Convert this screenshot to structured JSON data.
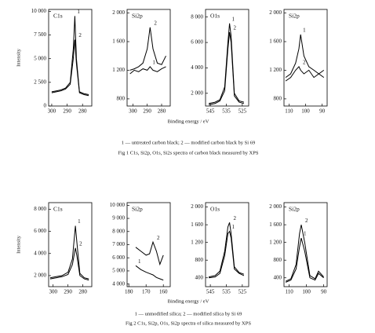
{
  "chart_data": [
    {
      "type": "line",
      "title": "C1s",
      "ylabel": "Intensity",
      "x": [
        300,
        297,
        294,
        291,
        288,
        286,
        285,
        284,
        282,
        279,
        276
      ],
      "xlim": [
        302,
        274
      ],
      "xticks": [
        300,
        290,
        280
      ],
      "ylim": [
        0,
        10200
      ],
      "yticks": [
        {
          "value": 10000,
          "label": "10 000"
        },
        {
          "value": 7500,
          "label": "7 500"
        },
        {
          "value": 5000,
          "label": "5 000"
        },
        {
          "value": 2500,
          "label": "2 500"
        },
        0
      ],
      "series": [
        {
          "name": "1",
          "color": "#000000",
          "values": [
            1500,
            1600,
            1700,
            1900,
            2500,
            6000,
            9500,
            5000,
            1500,
            1300,
            1200
          ]
        },
        {
          "name": "2",
          "color": "#000000",
          "values": [
            1400,
            1500,
            1600,
            1800,
            2300,
            5000,
            7000,
            4500,
            1400,
            1200,
            1100
          ]
        }
      ]
    },
    {
      "type": "line",
      "title": "Si2p",
      "x": [
        302,
        299,
        296,
        293,
        290,
        288,
        286,
        283,
        280,
        277
      ],
      "xlim": [
        304,
        274
      ],
      "xticks": [
        300,
        290,
        280
      ],
      "ylim": [
        700,
        2050
      ],
      "yticks": [
        {
          "value": 2000,
          "label": "2 000"
        },
        {
          "value": 1600,
          "label": "1 600"
        },
        {
          "value": 1200,
          "label": "1 200"
        },
        800
      ],
      "series": [
        {
          "name": "1",
          "color": "#000000",
          "values": [
            1150,
            1200,
            1180,
            1220,
            1200,
            1250,
            1200,
            1180,
            1220,
            1250
          ]
        },
        {
          "name": "2",
          "color": "#000000",
          "values": [
            1200,
            1220,
            1250,
            1300,
            1500,
            1800,
            1500,
            1300,
            1280,
            1400
          ]
        }
      ]
    },
    {
      "type": "line",
      "title": "O1s",
      "x": [
        546,
        542,
        539,
        536,
        534,
        533,
        532,
        530,
        527,
        524
      ],
      "xlim": [
        548,
        521
      ],
      "xticks": [
        545,
        535,
        525
      ],
      "ylim": [
        1000,
        8600
      ],
      "yticks": [
        {
          "value": 8000,
          "label": "8 000"
        },
        {
          "value": 6000,
          "label": "6 000"
        },
        {
          "value": 4000,
          "label": "4 000"
        },
        {
          "value": 2000,
          "label": "2 000"
        }
      ],
      "series": [
        {
          "name": "1",
          "color": "#000000",
          "values": [
            1200,
            1300,
            1500,
            2500,
            6000,
            7500,
            6500,
            2000,
            1400,
            1300
          ]
        },
        {
          "name": "2",
          "color": "#000000",
          "values": [
            1100,
            1200,
            1400,
            2200,
            5500,
            6800,
            6000,
            1800,
            1300,
            1200
          ]
        }
      ]
    },
    {
      "type": "line",
      "title": "Si2p",
      "x": [
        112,
        109,
        106,
        104,
        103,
        101,
        98,
        95,
        92,
        89
      ],
      "xlim": [
        113,
        87
      ],
      "xticks": [
        110,
        100,
        90
      ],
      "ylim": [
        700,
        2050
      ],
      "yticks": [
        {
          "value": 2000,
          "label": "2 000"
        },
        {
          "value": 1600,
          "label": "1 600"
        },
        {
          "value": 1200,
          "label": "1 200"
        },
        800
      ],
      "series": [
        {
          "name": "1",
          "color": "#000000",
          "values": [
            1100,
            1150,
            1300,
            1500,
            1700,
            1400,
            1250,
            1200,
            1150,
            1200
          ]
        },
        {
          "name": "2",
          "color": "#000000",
          "values": [
            1050,
            1100,
            1200,
            1250,
            1200,
            1150,
            1200,
            1100,
            1150,
            1100
          ]
        }
      ]
    },
    {
      "type": "line",
      "title": "C1s",
      "ylabel": "Intensity",
      "x": [
        302,
        298,
        294,
        290,
        287,
        285,
        284,
        282,
        279,
        276
      ],
      "xlim": [
        303,
        274
      ],
      "xticks": [
        300,
        290,
        280
      ],
      "ylim": [
        1000,
        8600
      ],
      "yticks": [
        {
          "value": 8000,
          "label": "8 000"
        },
        {
          "value": 6000,
          "label": "6 000"
        },
        {
          "value": 4000,
          "label": "4 000"
        },
        {
          "value": 2000,
          "label": "2 000"
        }
      ],
      "series": [
        {
          "name": "1",
          "color": "#000000",
          "values": [
            1800,
            1900,
            2000,
            2300,
            3500,
            6500,
            5000,
            2200,
            1800,
            1700
          ]
        },
        {
          "name": "2",
          "color": "#000000",
          "values": [
            1700,
            1800,
            1900,
            2100,
            3000,
            4500,
            3800,
            2000,
            1700,
            1600
          ]
        }
      ]
    },
    {
      "type": "line",
      "title": "Si2p",
      "x": [
        176,
        173,
        170,
        168,
        166,
        164,
        162,
        160
      ],
      "xlim": [
        181,
        156
      ],
      "xticks": [
        180,
        170,
        160
      ],
      "ylim": [
        3800,
        10200
      ],
      "yticks": [
        {
          "value": 10000,
          "label": "10 000"
        },
        {
          "value": 9000,
          "label": "9 000"
        },
        {
          "value": 8000,
          "label": "8 000"
        },
        {
          "value": 7000,
          "label": "7 000"
        },
        {
          "value": 6000,
          "label": "6 000"
        },
        {
          "value": 5000,
          "label": "5 000"
        },
        {
          "value": 4000,
          "label": "4 000"
        }
      ],
      "series": [
        {
          "name": "1",
          "color": "#000000",
          "values": [
            5400,
            5100,
            4900,
            4800,
            4700,
            4500,
            4400,
            4300
          ]
        },
        {
          "name": "2",
          "color": "#000000",
          "values": [
            6800,
            6500,
            6200,
            6300,
            7200,
            6500,
            5500,
            6200
          ]
        }
      ]
    },
    {
      "type": "line",
      "title": "O1s",
      "x": [
        546,
        542,
        539,
        536,
        534,
        533,
        532,
        530,
        527,
        524
      ],
      "xlim": [
        548,
        521
      ],
      "xticks": [
        545,
        535,
        525
      ],
      "ylim": [
        200,
        2100
      ],
      "yticks": [
        {
          "value": 2000,
          "label": "2 000"
        },
        {
          "value": 1600,
          "label": "1 600"
        },
        {
          "value": 1200,
          "label": "1 200"
        },
        800,
        400
      ],
      "series": [
        {
          "name": "1",
          "color": "#000000",
          "values": [
            400,
            420,
            500,
            900,
            1400,
            1450,
            1300,
            600,
            500,
            450
          ]
        },
        {
          "name": "2",
          "color": "#000000",
          "values": [
            420,
            450,
            550,
            1000,
            1550,
            1650,
            1400,
            650,
            520,
            480
          ]
        }
      ]
    },
    {
      "type": "line",
      "title": "Si2p",
      "x": [
        112,
        109,
        106,
        104,
        103,
        101,
        98,
        95,
        93,
        90
      ],
      "xlim": [
        113,
        88
      ],
      "xticks": [
        110,
        100,
        90
      ],
      "ylim": [
        200,
        2100
      ],
      "yticks": [
        {
          "value": 2000,
          "label": "2 000"
        },
        {
          "value": 1600,
          "label": "1 600"
        },
        {
          "value": 1200,
          "label": "1 200"
        },
        800,
        400
      ],
      "series": [
        {
          "name": "1",
          "color": "#000000",
          "values": [
            300,
            350,
            600,
            1100,
            1300,
            1000,
            400,
            350,
            500,
            400
          ]
        },
        {
          "name": "2",
          "color": "#000000",
          "values": [
            320,
            380,
            700,
            1400,
            1600,
            1200,
            450,
            380,
            550,
            420
          ]
        }
      ]
    }
  ],
  "figures": [
    {
      "xlabel": "Binding energy / eV",
      "legend": "1 — untreated carbon black; 2 — modified carbon black by Si 69",
      "caption": "Fig 1  C1s, Si2p, O1s, Si2s spectra of carbon black measured by XPS"
    },
    {
      "xlabel": "Binding energy / eV",
      "legend": "1 — unmodified silica; 2 — modified silica by Si 69",
      "caption": "Fig 2  C1s, Si2p, O1s, Si2p spectra of silica measured by XPS"
    }
  ]
}
